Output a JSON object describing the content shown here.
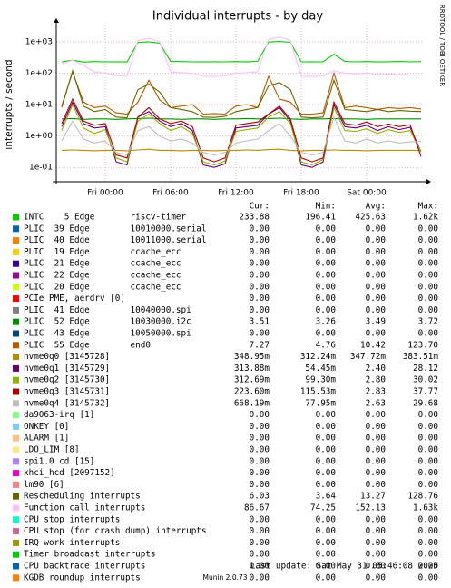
{
  "chart_data": {
    "type": "line",
    "title": "Individual interrupts - by day",
    "ylabel": "interrupts / second",
    "side_text": "RRDTOOL / TOBI OETIKER",
    "yscale": "log",
    "ylim": [
      0.035,
      3300
    ],
    "yticks": [
      {
        "value": 0.1,
        "label": "1e-01"
      },
      {
        "value": 1,
        "label": "1e+00"
      },
      {
        "value": 10,
        "label": "1e+01"
      },
      {
        "value": 100,
        "label": "1e+02"
      },
      {
        "value": 1000,
        "label": "1e+03"
      }
    ],
    "grid": true,
    "categories": [
      null,
      null,
      null,
      null,
      "Fri 00:00",
      null,
      null,
      null,
      null,
      null,
      "Fri 06:00",
      null,
      null,
      null,
      null,
      null,
      "Fri 12:00",
      null,
      null,
      null,
      null,
      null,
      "Fri 18:00",
      null,
      null,
      null,
      null,
      null,
      "Sat 00:00",
      null,
      null,
      null,
      null,
      null
    ],
    "legend_headers": [
      "Cur:",
      "Min:",
      "Avg:",
      "Max:"
    ],
    "series": [
      {
        "name": "INTC    5 Edge       riscv-timer",
        "color": "#00cc00",
        "cur": "233.88",
        "min": "196.41",
        "avg": "425.63",
        "max": "1.62k",
        "values": [
          230,
          260,
          225,
          235,
          230,
          232,
          228,
          950,
          1000,
          900,
          240,
          235,
          230,
          228,
          232,
          230,
          235,
          228,
          240,
          980,
          1020,
          960,
          230,
          228,
          232,
          400,
          236,
          230,
          234,
          228,
          232,
          236,
          230,
          234
        ]
      },
      {
        "name": "PLIC  39 Edge        10010000.serial",
        "color": "#0066b3",
        "cur": "0.00",
        "min": "0.00",
        "avg": "0.00",
        "max": "0.00"
      },
      {
        "name": "PLIC  40 Edge        10011000.serial",
        "color": "#ff8000",
        "cur": "0.00",
        "min": "0.00",
        "avg": "0.00",
        "max": "0.00"
      },
      {
        "name": "PLIC  19 Edge        ccache_ecc",
        "color": "#ffcc00",
        "cur": "0.00",
        "min": "0.00",
        "avg": "0.00",
        "max": "0.00"
      },
      {
        "name": "PLIC  21 Edge        ccache_ecc",
        "color": "#330099",
        "cur": "0.00",
        "min": "0.00",
        "avg": "0.00",
        "max": "0.00"
      },
      {
        "name": "PLIC  22 Edge        ccache_ecc",
        "color": "#990099",
        "cur": "0.00",
        "min": "0.00",
        "avg": "0.00",
        "max": "0.00"
      },
      {
        "name": "PLIC  20 Edge        ccache_ecc",
        "color": "#ccff00",
        "cur": "0.00",
        "min": "0.00",
        "avg": "0.00",
        "max": "0.00"
      },
      {
        "name": "PCIe PME, aerdrv [0]",
        "color": "#ff0000",
        "cur": "0.00",
        "min": "0.00",
        "avg": "0.00",
        "max": "0.00"
      },
      {
        "name": "PLIC  41 Edge        10040000.spi",
        "color": "#808080",
        "cur": "0.00",
        "min": "0.00",
        "avg": "0.00",
        "max": "0.00"
      },
      {
        "name": "PLIC  52 Edge        10030000.i2c",
        "color": "#008f00",
        "cur": "3.51",
        "min": "3.26",
        "avg": "3.49",
        "max": "3.72",
        "values": [
          3.5,
          3.6,
          3.4,
          3.5,
          3.5,
          3.4,
          3.5,
          3.6,
          3.7,
          3.5,
          3.5,
          3.4,
          3.5,
          3.5,
          3.4,
          3.5,
          3.5,
          3.6,
          3.5,
          3.6,
          3.7,
          3.5,
          3.4,
          3.5,
          3.5,
          3.6,
          3.5,
          3.5,
          3.4,
          3.5,
          3.5,
          3.5,
          3.5,
          3.51
        ]
      },
      {
        "name": "PLIC  43 Edge        10050000.spi",
        "color": "#00487d",
        "cur": "0.00",
        "min": "0.00",
        "avg": "0.00",
        "max": "0.00"
      },
      {
        "name": "PLIC  55 Edge        end0",
        "color": "#b35a00",
        "cur": "7.27",
        "min": "4.76",
        "avg": "10.42",
        "max": "123.70",
        "values": [
          9,
          110,
          12,
          8,
          9,
          5.5,
          5,
          12,
          60,
          14,
          8,
          9,
          10,
          5,
          5.2,
          5,
          9,
          10,
          8,
          80,
          15,
          12,
          5,
          5,
          5.5,
          100,
          8,
          9,
          8,
          7,
          8,
          7.5,
          8,
          7.27
        ]
      },
      {
        "name": "nvme0q0 [3145728]",
        "color": "#b38f00",
        "cur": "348.95m",
        "min": "312.24m",
        "avg": "347.72m",
        "max": "383.51m",
        "values": [
          0.35,
          0.36,
          0.35,
          0.34,
          0.35,
          0.35,
          0.34,
          0.36,
          0.38,
          0.35,
          0.35,
          0.34,
          0.35,
          0.35,
          0.34,
          0.35,
          0.35,
          0.36,
          0.35,
          0.37,
          0.38,
          0.35,
          0.34,
          0.35,
          0.35,
          0.36,
          0.35,
          0.35,
          0.34,
          0.35,
          0.35,
          0.35,
          0.35,
          0.349
        ]
      },
      {
        "name": "nvme0q1 [3145729]",
        "color": "#6b006b",
        "cur": "313.88m",
        "min": "54.45m",
        "avg": "2.40",
        "max": "28.12",
        "values": [
          2,
          12,
          2.5,
          1.8,
          2,
          0.15,
          0.12,
          4,
          6,
          3,
          2,
          2.5,
          1.5,
          0.12,
          0.1,
          0.13,
          1.8,
          2,
          2.2,
          5,
          8,
          3,
          0.12,
          0.1,
          0.15,
          10,
          2,
          1.8,
          2.2,
          1.5,
          2,
          1.6,
          1.9,
          0.31
        ]
      },
      {
        "name": "nvme0q2 [3145730]",
        "color": "#8fb300",
        "cur": "312.69m",
        "min": "99.30m",
        "avg": "2.80",
        "max": "30.02",
        "values": [
          1.5,
          10,
          1.8,
          1.2,
          1.6,
          0.2,
          0.15,
          3,
          5,
          2.5,
          1.5,
          2,
          1.2,
          0.15,
          0.12,
          0.16,
          1.4,
          1.6,
          1.8,
          4,
          6,
          2.5,
          0.15,
          0.12,
          0.18,
          8,
          1.5,
          1.4,
          1.7,
          1.2,
          1.6,
          1.3,
          1.5,
          0.31
        ]
      },
      {
        "name": "nvme0q3 [3145731]",
        "color": "#b30000",
        "cur": "223.60m",
        "min": "115.53m",
        "avg": "2.83",
        "max": "37.77",
        "values": [
          2.5,
          15,
          3,
          2.2,
          2.5,
          0.25,
          0.2,
          4,
          8,
          3.5,
          2.5,
          3,
          2,
          0.2,
          0.15,
          0.2,
          2.2,
          2.5,
          2.8,
          5,
          9,
          3.5,
          0.2,
          0.15,
          0.2,
          12,
          2.5,
          2.2,
          2.8,
          2,
          2.4,
          2,
          2.3,
          0.22
        ]
      },
      {
        "name": "nvme0q4 [3145732]",
        "color": "#bebebe",
        "cur": "668.19m",
        "min": "77.95m",
        "avg": "2.63",
        "max": "29.68",
        "values": [
          0.7,
          3,
          0.8,
          0.6,
          0.7,
          0.3,
          0.25,
          1.5,
          2,
          1,
          0.7,
          0.8,
          0.6,
          0.3,
          0.25,
          0.3,
          0.6,
          0.7,
          0.8,
          1.5,
          2.5,
          1,
          0.3,
          0.25,
          0.3,
          4,
          0.7,
          0.6,
          0.8,
          0.6,
          0.7,
          0.6,
          0.65,
          0.67
        ]
      },
      {
        "name": "da9063-irq [1]",
        "color": "#80ff80",
        "cur": "0.00",
        "min": "0.00",
        "avg": "0.00",
        "max": "0.00"
      },
      {
        "name": "ONKEY [0]",
        "color": "#80c9ff",
        "cur": "0.00",
        "min": "0.00",
        "avg": "0.00",
        "max": "0.00"
      },
      {
        "name": "ALARM [1]",
        "color": "#ffc080",
        "cur": "0.00",
        "min": "0.00",
        "avg": "0.00",
        "max": "0.00"
      },
      {
        "name": "LDO_LIM [8]",
        "color": "#ffe680",
        "cur": "0.00",
        "min": "0.00",
        "avg": "0.00",
        "max": "0.00"
      },
      {
        "name": "spi1.0 cd [15]",
        "color": "#aa80ff",
        "cur": "0.00",
        "min": "0.00",
        "avg": "0.00",
        "max": "0.00"
      },
      {
        "name": "xhci_hcd [2097152]",
        "color": "#ee00cc",
        "cur": "0.00",
        "min": "0.00",
        "avg": "0.00",
        "max": "0.00"
      },
      {
        "name": "lm90 [6]",
        "color": "#ff8080",
        "cur": "0.00",
        "min": "0.00",
        "avg": "0.00",
        "max": "0.00"
      },
      {
        "name": "Rescheduling interrupts",
        "color": "#666600",
        "cur": "6.03",
        "min": "3.64",
        "avg": "13.27",
        "max": "128.76",
        "values": [
          8,
          120,
          9,
          6,
          7,
          4,
          3.8,
          30,
          45,
          25,
          8,
          7,
          6,
          4,
          3.9,
          4.2,
          6,
          7,
          8,
          40,
          50,
          30,
          4,
          3.8,
          4,
          60,
          7,
          6.5,
          6,
          7,
          6,
          6.5,
          6.2,
          6.03
        ]
      },
      {
        "name": "Function call interrupts",
        "color": "#ffbfff",
        "cur": "86.67",
        "min": "74.25",
        "avg": "152.13",
        "max": "1.63k",
        "values": [
          200,
          260,
          180,
          110,
          100,
          85,
          80,
          1100,
          1300,
          1000,
          110,
          105,
          100,
          80,
          78,
          82,
          100,
          105,
          110,
          1200,
          1400,
          1100,
          80,
          78,
          82,
          120,
          100,
          95,
          100,
          90,
          95,
          92,
          88,
          86.67
        ]
      },
      {
        "name": "CPU stop interrupts",
        "color": "#00ffcc",
        "cur": "0.00",
        "min": "0.00",
        "avg": "0.00",
        "max": "0.00"
      },
      {
        "name": "CPU stop (for crash dump) interrupts",
        "color": "#cc6699",
        "cur": "0.00",
        "min": "0.00",
        "avg": "0.00",
        "max": "0.00"
      },
      {
        "name": "IRQ work interrupts",
        "color": "#999900",
        "cur": "0.00",
        "min": "0.00",
        "avg": "0.00",
        "max": "0.00"
      },
      {
        "name": "Timer broadcast interrupts",
        "color": "#00cc00",
        "cur": "0.00",
        "min": "0.00",
        "avg": "0.00",
        "max": "0.00"
      },
      {
        "name": "CPU backtrace interrupts",
        "color": "#0066b3",
        "cur": "0.00",
        "min": "0.00",
        "avg": "0.00",
        "max": "0.00"
      },
      {
        "name": "KGDB roundup interrupts",
        "color": "#ff8000",
        "cur": "0.00",
        "min": "0.00",
        "avg": "0.00",
        "max": "0.00"
      }
    ],
    "last_update": "Last update: Sat May 31 05:46:08 2025",
    "footer": "Munin 2.0.73"
  }
}
